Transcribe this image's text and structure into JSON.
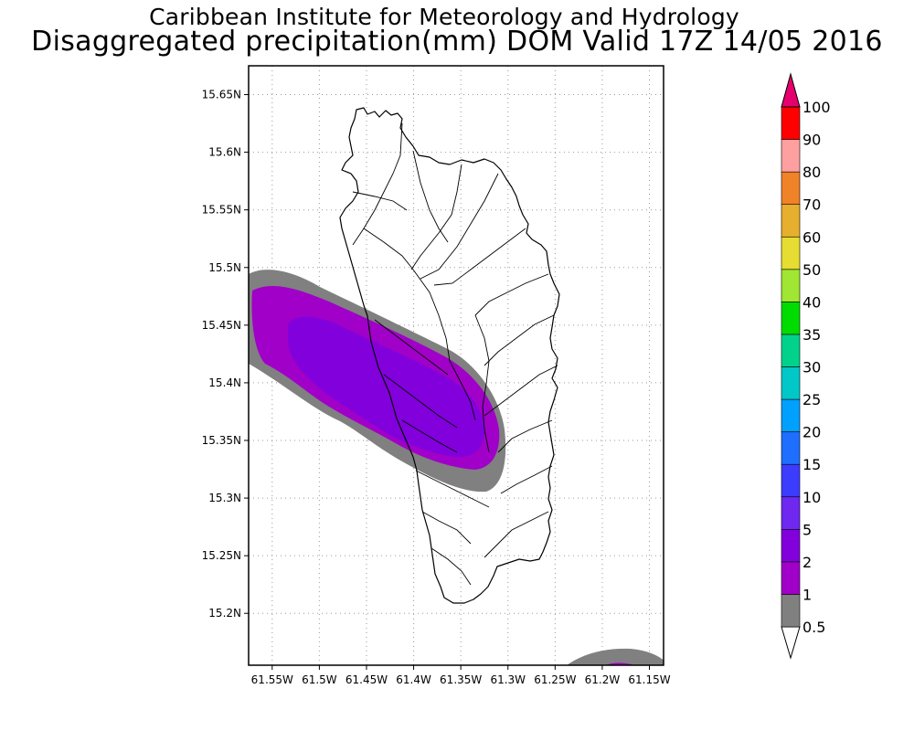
{
  "title_line1": "Caribbean Institute for Meteorology and Hydrology",
  "title_line2": "Disaggregated precipitation(mm) DOM Valid 17Z 14/05 2016",
  "map": {
    "lon_range": [
      -61.575,
      -61.135
    ],
    "lat_range": [
      15.155,
      15.675
    ],
    "lat_ticks": [
      {
        "value": 15.65,
        "label": "15.65N"
      },
      {
        "value": 15.6,
        "label": "15.6N"
      },
      {
        "value": 15.55,
        "label": "15.55N"
      },
      {
        "value": 15.5,
        "label": "15.5N"
      },
      {
        "value": 15.45,
        "label": "15.45N"
      },
      {
        "value": 15.4,
        "label": "15.4N"
      },
      {
        "value": 15.35,
        "label": "15.35N"
      },
      {
        "value": 15.3,
        "label": "15.3N"
      },
      {
        "value": 15.25,
        "label": "15.25N"
      },
      {
        "value": 15.2,
        "label": "15.2N"
      }
    ],
    "lon_ticks": [
      {
        "value": -61.55,
        "label": "61.55W"
      },
      {
        "value": -61.5,
        "label": "61.5W"
      },
      {
        "value": -61.45,
        "label": "61.45W"
      },
      {
        "value": -61.4,
        "label": "61.4W"
      },
      {
        "value": -61.35,
        "label": "61.35W"
      },
      {
        "value": -61.3,
        "label": "61.3W"
      },
      {
        "value": -61.25,
        "label": "61.25W"
      },
      {
        "value": -61.2,
        "label": "61.2W"
      },
      {
        "value": -61.15,
        "label": "61.15W"
      }
    ],
    "grid": true
  },
  "colorbar": {
    "levels": [
      "0.5",
      "1",
      "2",
      "5",
      "10",
      "15",
      "20",
      "25",
      "30",
      "35",
      "40",
      "50",
      "60",
      "70",
      "80",
      "90",
      "100"
    ],
    "colors": [
      "#808080",
      "#a000c8",
      "#8200dc",
      "#6e28f0",
      "#3c3cff",
      "#1e6eff",
      "#00a0ff",
      "#00c8c8",
      "#00d28c",
      "#00dc00",
      "#a0e632",
      "#e6dc32",
      "#e6af2d",
      "#f08228",
      "#ffa0a0",
      "#ff0000",
      "#ff3c3c"
    ],
    "under_color": "#ffffff",
    "over_color": "#e6006e"
  },
  "colors": {
    "bg": "#ffffff",
    "coast": "#000000",
    "band_05": "#808080",
    "band_1": "#a000c8",
    "band_2": "#8200dc",
    "band_5": "#6e28f0"
  }
}
